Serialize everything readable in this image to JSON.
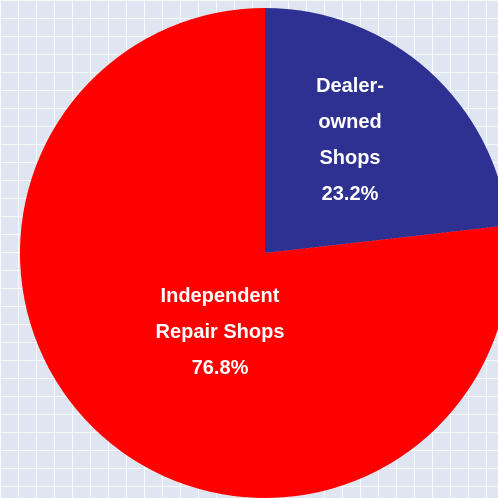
{
  "chart_data": {
    "type": "pie",
    "categories": [
      "Dealer-owned Shops",
      "Independent Repair Shops"
    ],
    "values": [
      23.2,
      76.8
    ],
    "value_labels": [
      "23.2%",
      "76.8%"
    ],
    "colors": [
      "#2e3192",
      "#ff0000"
    ]
  }
}
